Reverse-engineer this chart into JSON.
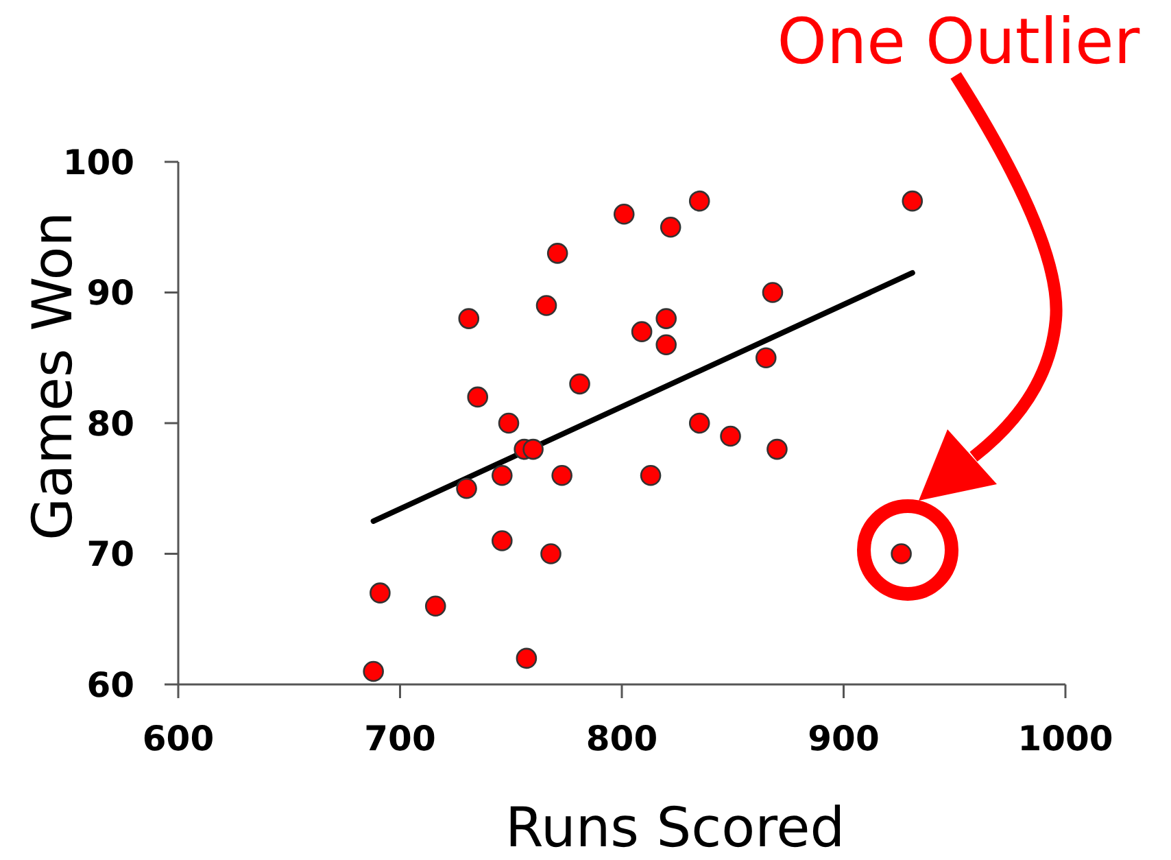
{
  "chart_data": {
    "type": "scatter",
    "xlabel": "Runs Scored",
    "ylabel": "Games Won",
    "series": [
      {
        "type": "scatter",
        "color": "#ff0000",
        "x": [
          688,
          691,
          716,
          730,
          731,
          735,
          746,
          746,
          749,
          756,
          760,
          757,
          766,
          768,
          771,
          773,
          781,
          801,
          809,
          813,
          820,
          820,
          822,
          835,
          835,
          849,
          865,
          868,
          870,
          926,
          931
        ],
        "values": [
          61,
          67,
          66,
          75,
          88,
          82,
          76,
          71,
          80,
          78,
          78,
          62,
          89,
          70,
          93,
          76,
          83,
          96,
          87,
          76,
          88,
          86,
          95,
          97,
          80,
          79,
          85,
          90,
          78,
          70,
          97
        ]
      },
      {
        "type": "line",
        "color": "#000000",
        "marker": "none",
        "x": [
          688,
          931
        ],
        "values": [
          72.5,
          91.5
        ]
      }
    ],
    "xlim": [
      600,
      1000
    ],
    "xticks": [
      600,
      700,
      800,
      900,
      1000
    ],
    "ylim": [
      60,
      100
    ],
    "yticks": [
      60,
      70,
      80,
      90,
      100
    ],
    "marker": "circle",
    "annotations": [
      "One Outlier"
    ]
  }
}
